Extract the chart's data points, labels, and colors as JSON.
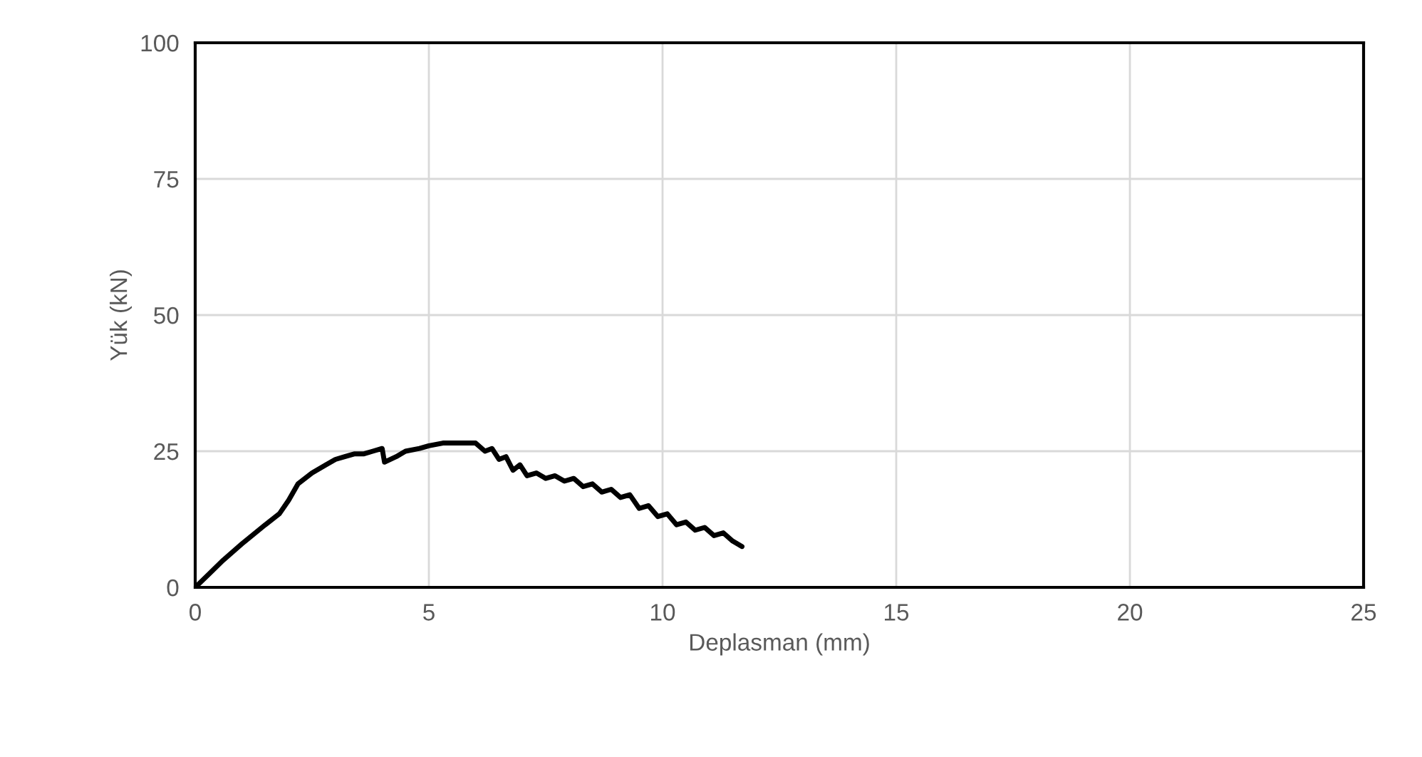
{
  "chart_data": {
    "type": "line",
    "xlabel": "Deplasman (mm)",
    "ylabel": "Yük (kN)",
    "xlim": [
      0,
      25
    ],
    "xticks": [
      0,
      5,
      10,
      15,
      20,
      25
    ],
    "ylim": [
      0,
      100
    ],
    "yticks": [
      0,
      25,
      50,
      75,
      100
    ],
    "grid": true,
    "series": [
      {
        "color": "#000000",
        "x": [
          0,
          0.3,
          0.6,
          1.0,
          1.5,
          1.8,
          2.0,
          2.2,
          2.5,
          2.8,
          3.0,
          3.2,
          3.4,
          3.6,
          3.8,
          4.0,
          4.05,
          4.3,
          4.5,
          4.8,
          5.0,
          5.3,
          5.5,
          5.8,
          6.0,
          6.2,
          6.35,
          6.5,
          6.65,
          6.8,
          6.95,
          7.1,
          7.3,
          7.5,
          7.7,
          7.9,
          8.1,
          8.3,
          8.5,
          8.7,
          8.9,
          9.1,
          9.3,
          9.5,
          9.7,
          9.9,
          10.1,
          10.3,
          10.5,
          10.7,
          10.9,
          11.1,
          11.3,
          11.5,
          11.7
        ],
        "values": [
          0,
          2.5,
          5,
          8,
          11.5,
          13.5,
          16,
          19,
          21,
          22.5,
          23.5,
          24,
          24.5,
          24.5,
          25,
          25.5,
          23,
          24,
          25,
          25.5,
          26,
          26.5,
          26.5,
          26.5,
          26.5,
          25,
          25.5,
          23.5,
          24,
          21.5,
          22.5,
          20.5,
          21,
          20,
          20.5,
          19.5,
          20,
          18.5,
          19,
          17.5,
          18,
          16.5,
          17,
          14.5,
          15,
          13,
          13.5,
          11.5,
          12,
          10.5,
          11,
          9.5,
          10,
          8.5,
          7.5
        ]
      }
    ]
  }
}
